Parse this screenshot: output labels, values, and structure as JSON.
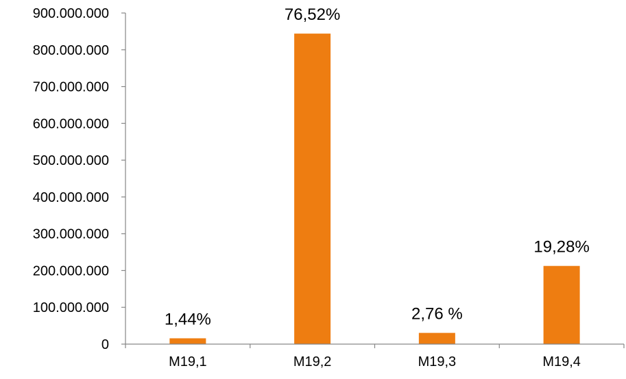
{
  "chart_data": {
    "type": "bar",
    "categories": [
      "M19,1",
      "M19,2",
      "M19,3",
      "M19,4"
    ],
    "values": [
      15800000,
      844000000,
      30500000,
      212500000
    ],
    "data_labels": [
      "1,44%",
      "76,52%",
      "2,76 %",
      "19,28%"
    ],
    "ylim": [
      0,
      900000000
    ],
    "yticks": [
      0,
      100000000,
      200000000,
      300000000,
      400000000,
      500000000,
      600000000,
      700000000,
      800000000,
      900000000
    ],
    "ytick_labels": [
      "0",
      "100.000.000",
      "200.000.000",
      "300.000.000",
      "400.000.000",
      "500.000.000",
      "600.000.000",
      "700.000.000",
      "800.000.000",
      "900.000.000"
    ],
    "title": "",
    "xlabel": "",
    "ylabel": "",
    "grid": false,
    "legend": "none",
    "bar_color": "#EE7D11",
    "axis_color": "#868686"
  }
}
